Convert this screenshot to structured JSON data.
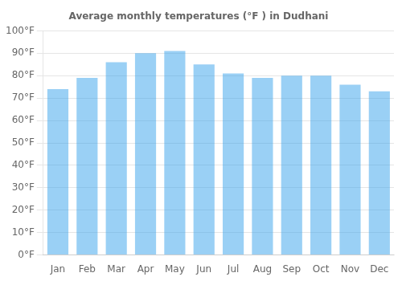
{
  "chart_data": {
    "type": "bar",
    "title": "Average monthly temperatures (°F ) in Dudhani",
    "categories": [
      "Jan",
      "Feb",
      "Mar",
      "Apr",
      "May",
      "Jun",
      "Jul",
      "Aug",
      "Sep",
      "Oct",
      "Nov",
      "Dec"
    ],
    "values": [
      74,
      79,
      86,
      90,
      91,
      85,
      81,
      79,
      80,
      80,
      76,
      73
    ],
    "ylim": [
      0,
      100
    ],
    "yticks": [
      {
        "value": 0,
        "label": "0°F"
      },
      {
        "value": 10,
        "label": "10°F"
      },
      {
        "value": 20,
        "label": "20°F"
      },
      {
        "value": 30,
        "label": "30°F"
      },
      {
        "value": 40,
        "label": "40°F"
      },
      {
        "value": 50,
        "label": "50°F"
      },
      {
        "value": 60,
        "label": "60°F"
      },
      {
        "value": 70,
        "label": "70°F"
      },
      {
        "value": 80,
        "label": "80°F"
      },
      {
        "value": 90,
        "label": "90°F"
      },
      {
        "value": 100,
        "label": "100°F"
      }
    ],
    "grid": true
  }
}
